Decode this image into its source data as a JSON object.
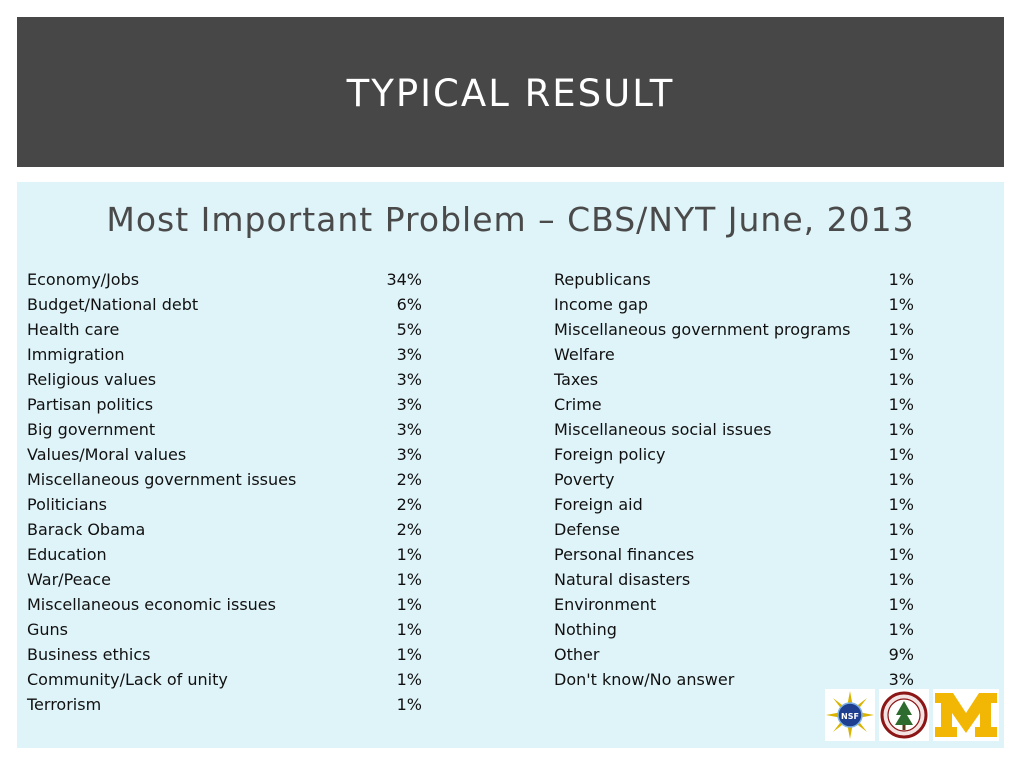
{
  "slide": {
    "title": "Typical Result",
    "subtitle": "Most Important Problem – CBS/NYT June, 2013"
  },
  "table_left": [
    {
      "label": "Economy/Jobs",
      "value": "34%"
    },
    {
      "label": "Budget/National debt",
      "value": "6%"
    },
    {
      "label": "Health care",
      "value": "5%"
    },
    {
      "label": "Immigration",
      "value": "3%"
    },
    {
      "label": "Religious values",
      "value": "3%"
    },
    {
      "label": "Partisan politics",
      "value": "3%"
    },
    {
      "label": "Big government",
      "value": "3%"
    },
    {
      "label": "Values/Moral values",
      "value": "3%"
    },
    {
      "label": "Miscellaneous government issues",
      "value": "2%"
    },
    {
      "label": "Politicians",
      "value": "2%"
    },
    {
      "label": "Barack Obama",
      "value": "2%"
    },
    {
      "label": "Education",
      "value": "1%"
    },
    {
      "label": "War/Peace",
      "value": "1%"
    },
    {
      "label": "Miscellaneous economic issues",
      "value": "1%"
    },
    {
      "label": "Guns",
      "value": "1%"
    },
    {
      "label": "Business ethics",
      "value": "1%"
    },
    {
      "label": "Community/Lack of unity",
      "value": "1%"
    },
    {
      "label": "Terrorism",
      "value": "1%"
    }
  ],
  "table_right": [
    {
      "label": "Republicans",
      "value": "1%"
    },
    {
      "label": "Income gap",
      "value": "1%"
    },
    {
      "label": "Miscellaneous government programs",
      "value": "1%"
    },
    {
      "label": "Welfare",
      "value": "1%"
    },
    {
      "label": "Taxes",
      "value": "1%"
    },
    {
      "label": "Crime",
      "value": "1%"
    },
    {
      "label": "Miscellaneous social issues",
      "value": "1%"
    },
    {
      "label": "Foreign policy",
      "value": "1%"
    },
    {
      "label": "Poverty",
      "value": "1%"
    },
    {
      "label": "Foreign aid",
      "value": "1%"
    },
    {
      "label": "Defense",
      "value": "1%"
    },
    {
      "label": "Personal finances",
      "value": "1%"
    },
    {
      "label": "Natural disasters",
      "value": "1%"
    },
    {
      "label": "Environment",
      "value": "1%"
    },
    {
      "label": "Nothing",
      "value": "1%"
    },
    {
      "label": "Other",
      "value": "9%"
    },
    {
      "label": "Don't know/No answer",
      "value": "3%"
    }
  ],
  "logos": {
    "nsf_text": "NSF",
    "michigan_letter": "M",
    "items": [
      "nsf-logo",
      "stanford-seal-logo",
      "michigan-block-m-logo"
    ]
  },
  "colors": {
    "title_bar": "#474747",
    "content_bg": "#dff4f9",
    "michigan_maize": "#f2b705",
    "stanford_cardinal": "#8c1515"
  }
}
